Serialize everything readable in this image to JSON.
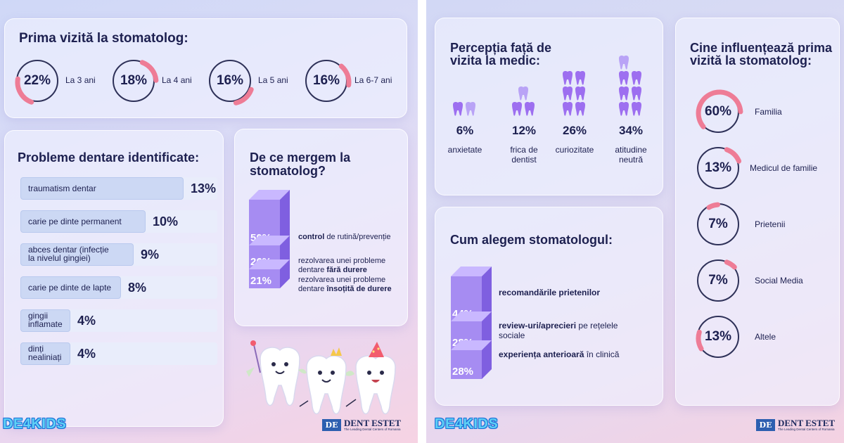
{
  "left": {
    "first_visit": {
      "title": "Prima vizită la stomatolog:",
      "items": [
        {
          "value": 22,
          "label": "22%",
          "age": "La 3 ani"
        },
        {
          "value": 18,
          "label": "18%",
          "age": "La 4 ani"
        },
        {
          "value": 16,
          "label": "16%",
          "age": "La 5 ani"
        },
        {
          "value": 16,
          "label": "16%",
          "age": "La 6-7 ani"
        }
      ]
    },
    "problems": {
      "title": "Probleme dentare identificate:",
      "items": [
        {
          "label": [
            "traumatism dentar"
          ],
          "value": 13,
          "value_label": "13%"
        },
        {
          "label": [
            "carie pe dinte permanent"
          ],
          "value": 10,
          "value_label": "10%"
        },
        {
          "label": [
            "abces dentar (infecție",
            "la nivelul gingiei)"
          ],
          "value": 9,
          "value_label": "9%"
        },
        {
          "label": [
            "carie pe dinte de lapte"
          ],
          "value": 8,
          "value_label": "8%"
        },
        {
          "label": [
            "gingii",
            "inflamate"
          ],
          "value": 4,
          "value_label": "4%"
        },
        {
          "label": [
            "dinți",
            "nealiniați"
          ],
          "value": 4,
          "value_label": "4%"
        }
      ]
    },
    "why": {
      "title": [
        "De ce mergem la",
        "stomatolog?"
      ],
      "items": [
        {
          "value": 50,
          "label": "50%",
          "bold": "control",
          "text_before": "",
          "text_after": " de rutină/prevenție",
          "line2_before": "",
          "line2_bold": "",
          "line2_after": ""
        },
        {
          "value": 26,
          "label": "26%",
          "bold": "",
          "text_before": "rezolvarea unei probleme",
          "text_after": "",
          "line2_before": "dentare ",
          "line2_bold": "fără durere",
          "line2_after": ""
        },
        {
          "value": 21,
          "label": "21%",
          "bold": "",
          "text_before": "rezolvarea unei probleme",
          "text_after": "",
          "line2_before": "dentare ",
          "line2_bold": "însoțită de durere",
          "line2_after": ""
        }
      ]
    },
    "logo_kids": "DE4KIDS",
    "brand_name": "DENT ESTET",
    "brand_mark": "DE",
    "brand_tagline": "The Leading Dental Centers of Romania"
  },
  "right": {
    "perception": {
      "title": [
        "Percepția față de",
        "vizita la medic:"
      ],
      "items": [
        {
          "value": 6,
          "label": "6%",
          "name": [
            "anxietate"
          ],
          "teeth": 2
        },
        {
          "value": 12,
          "label": "12%",
          "name": [
            "frica de",
            "dentist"
          ],
          "teeth": 3
        },
        {
          "value": 26,
          "label": "26%",
          "name": [
            "curiozitate"
          ],
          "teeth": 6
        },
        {
          "value": 34,
          "label": "34%",
          "name": [
            "atitudine",
            "neutră"
          ],
          "teeth": 7
        }
      ]
    },
    "choose": {
      "title": "Cum alegem stomatologul:",
      "items": [
        {
          "value": 44,
          "label": "44%",
          "bold": "recomandările prietenilor",
          "after": "",
          "line2": ""
        },
        {
          "value": 28,
          "label": "28%",
          "bold": "review-uri/aprecieri",
          "after": " pe rețelele",
          "line2": "sociale"
        },
        {
          "value": 28,
          "label": "28%",
          "bold": "experiența anterioară",
          "after": " în clinică",
          "line2": ""
        }
      ]
    },
    "influence": {
      "title": [
        "Cine influențează prima",
        "vizită la stomatolog:"
      ],
      "items": [
        {
          "value": 60,
          "label": "60%",
          "name": "Familia"
        },
        {
          "value": 13,
          "label": "13%",
          "name": "Medicul de familie"
        },
        {
          "value": 7,
          "label": "7%",
          "name": "Prietenii"
        },
        {
          "value": 7,
          "label": "7%",
          "name": "Social Media"
        },
        {
          "value": 13,
          "label": "13%",
          "name": "Altele"
        }
      ]
    },
    "logo_kids": "DE4KIDS",
    "brand_name": "DENT ESTET",
    "brand_mark": "DE",
    "brand_tagline": "The Leading Dental Centers of Romania"
  },
  "colors": {
    "accent_pink": "#ee7c96",
    "cube_purple": "#a68cf2",
    "tooth_purple": "#9d6ff0",
    "ink": "#1d2050"
  },
  "chart_data": [
    {
      "type": "pie",
      "title": "Prima vizită la stomatolog:",
      "categories": [
        "La 3 ani",
        "La 4 ani",
        "La 5 ani",
        "La 6-7 ani"
      ],
      "values": [
        22,
        18,
        16,
        16
      ]
    },
    {
      "type": "bar",
      "title": "Probleme dentare identificate:",
      "categories": [
        "traumatism dentar",
        "carie pe dinte permanent",
        "abces dentar (infecție la nivelul gingiei)",
        "carie pe dinte de lapte",
        "gingii inflamate",
        "dinți nealiniați"
      ],
      "values": [
        13,
        10,
        9,
        8,
        4,
        4
      ]
    },
    {
      "type": "bar",
      "title": "De ce mergem la stomatolog?",
      "categories": [
        "control de rutină/prevenție",
        "rezolvarea unei probleme dentare fără durere",
        "rezolvarea unei probleme dentare însoțită de durere"
      ],
      "values": [
        50,
        26,
        21
      ]
    },
    {
      "type": "bar",
      "title": "Percepția față de vizita la medic:",
      "categories": [
        "anxietate",
        "frica de dentist",
        "curiozitate",
        "atitudine neutră"
      ],
      "values": [
        6,
        12,
        26,
        34
      ]
    },
    {
      "type": "bar",
      "title": "Cum alegem stomatologul:",
      "categories": [
        "recomandările prietenilor",
        "review-uri/aprecieri pe rețelele sociale",
        "experiența anterioară în clinică"
      ],
      "values": [
        44,
        28,
        28
      ]
    },
    {
      "type": "pie",
      "title": "Cine influențează prima vizită la stomatolog:",
      "categories": [
        "Familia",
        "Medicul de familie",
        "Prietenii",
        "Social Media",
        "Altele"
      ],
      "values": [
        60,
        13,
        7,
        7,
        13
      ]
    }
  ]
}
